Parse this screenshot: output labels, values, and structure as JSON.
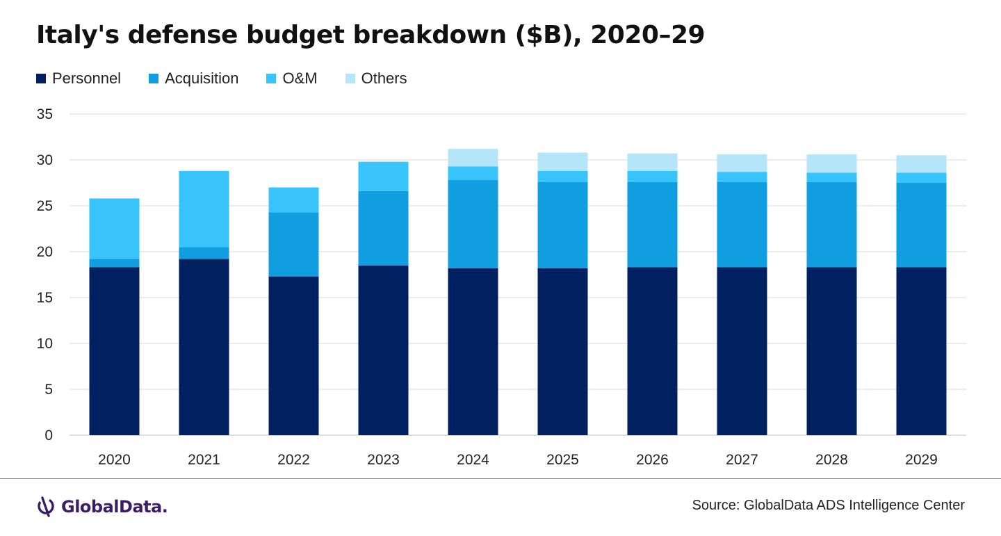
{
  "title": "Italy's defense budget breakdown ($B), 2020–29",
  "source": "Source: GlobalData ADS Intelligence Center",
  "logo_text": "GlobalData.",
  "chart_data": {
    "type": "bar",
    "stacked": true,
    "title": "Italy's defense budget breakdown ($B), 2020–29",
    "xlabel": "",
    "ylabel": "",
    "ylim": [
      0,
      35
    ],
    "yticks": [
      0,
      5,
      10,
      15,
      20,
      25,
      30,
      35
    ],
    "grid": true,
    "legend_position": "top-left",
    "categories": [
      "2020",
      "2021",
      "2022",
      "2023",
      "2024",
      "2025",
      "2026",
      "2027",
      "2028",
      "2029"
    ],
    "series": [
      {
        "name": "Personnel",
        "color": "#012060",
        "values": [
          18.3,
          19.2,
          17.3,
          18.5,
          18.2,
          18.2,
          18.3,
          18.3,
          18.3,
          18.3
        ]
      },
      {
        "name": "Acquisition",
        "color": "#109ee0",
        "values": [
          0.9,
          1.3,
          7.0,
          8.1,
          9.6,
          9.4,
          9.3,
          9.3,
          9.3,
          9.2
        ]
      },
      {
        "name": "O&M",
        "color": "#38c3fa",
        "values": [
          6.6,
          8.3,
          2.7,
          3.2,
          1.5,
          1.2,
          1.2,
          1.1,
          1.0,
          1.1
        ]
      },
      {
        "name": "Others",
        "color": "#b4e5f9",
        "values": [
          0,
          0,
          0,
          0,
          1.9,
          2.0,
          1.9,
          1.9,
          2.0,
          1.9
        ]
      }
    ]
  }
}
